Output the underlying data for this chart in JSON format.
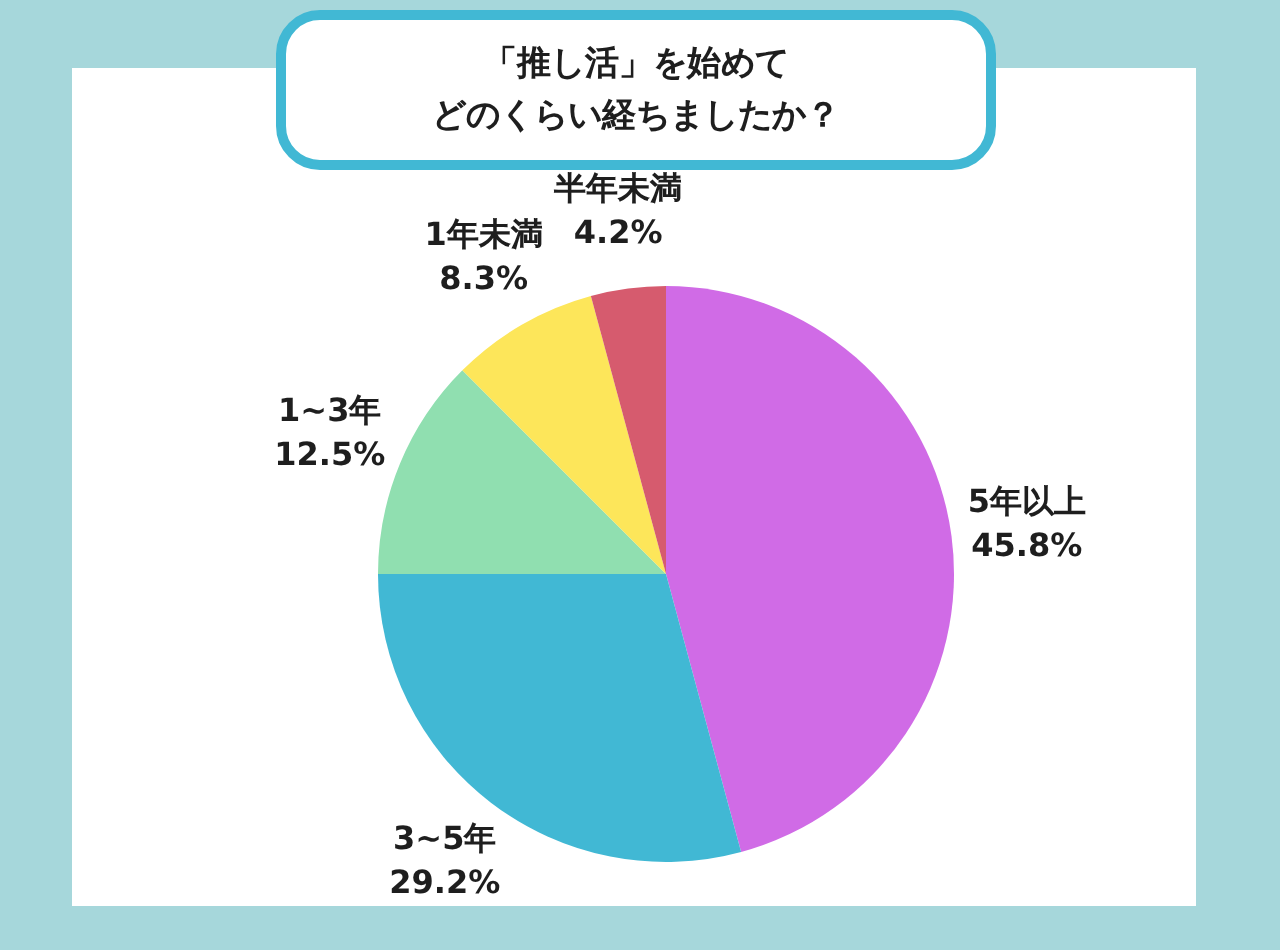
{
  "chart_data": {
    "type": "pie",
    "title": "「推し活」を始めて",
    "subtitle": "どのくらい経ちましたか？",
    "categories": [
      "5年以上",
      "3~5年",
      "1~3年",
      "1年未満",
      "半年未満"
    ],
    "values": [
      45.8,
      29.2,
      12.5,
      8.3,
      4.2
    ],
    "value_labels": [
      "45.8%",
      "29.2%",
      "12.5%",
      "8.3%",
      "4.2%"
    ],
    "colors": [
      "#d06be6",
      "#41b8d4",
      "#90dfb0",
      "#fde65a",
      "#d65b6e"
    ]
  }
}
